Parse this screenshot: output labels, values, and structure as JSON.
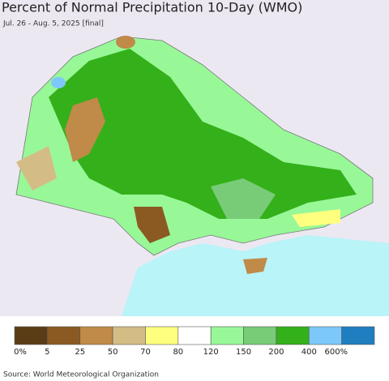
{
  "header": {
    "title": "Percent of Normal Precipitation 10-Day (WMO)",
    "subtitle": "Jul. 26 - Aug. 5, 2025 [final]"
  },
  "legend": {
    "colors": [
      "#5a3d16",
      "#8b5a22",
      "#c08a48",
      "#d4bd85",
      "#ffff7f",
      "#ffffff",
      "#98f898",
      "#78cc78",
      "#34b01a",
      "#7dc8fa",
      "#1e7ec0"
    ],
    "labels": [
      "0%",
      "5",
      "25",
      "50",
      "70",
      "80",
      "120",
      "150",
      "200",
      "400",
      "600%"
    ]
  },
  "footer": {
    "source": "Source: World Meteorological Organization"
  }
}
